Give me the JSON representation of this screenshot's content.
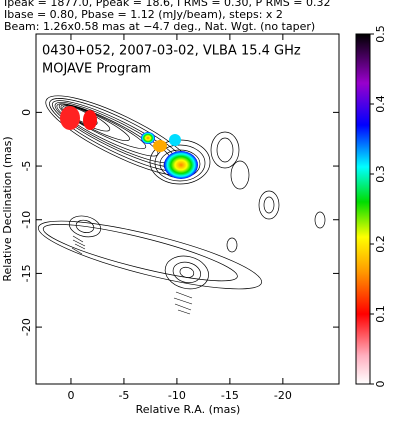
{
  "header": {
    "line1": "Ipeak = 1877.0, Ppeak = 18.6, I RMS = 0.30, P RMS = 0.32",
    "line2": "Ibase = 0.80, Pbase = 1.12 (mJy/beam), steps: x 2",
    "line3": "Beam: 1.26x0.58 mas at −4.7 deg., Nat. Wgt. (no taper)"
  },
  "chart_data": {
    "type": "contour",
    "title": "0430+052, 2007-03-02, VLBA 15.4 GHz",
    "subtitle": "MOJAVE Program",
    "x_label": "Relative R.A. (mas)",
    "y_label": "Relative Declination (mas)",
    "xlim": [
      3.3,
      -25.3
    ],
    "xticks": [
      0,
      -5,
      -10,
      -15,
      -20
    ],
    "ylim": [
      -25.3,
      7.3
    ],
    "yticks": [
      0,
      -5,
      -10,
      -15,
      -20
    ],
    "zlim": [
      0,
      0.5
    ],
    "zticks": [
      0,
      0.1,
      0.2,
      0.3,
      0.4,
      0.5
    ]
  }
}
